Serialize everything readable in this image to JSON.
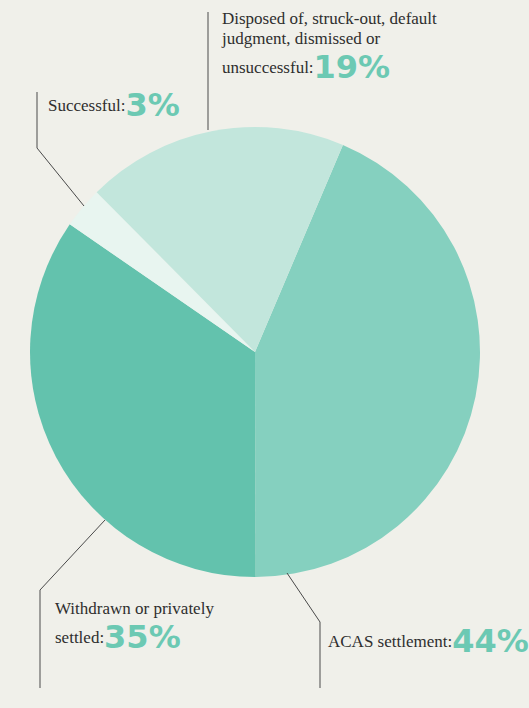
{
  "chart_data": {
    "type": "pie",
    "categories": [
      "ACAS settlement:",
      "Withdrawn or privately settled:",
      "Successful:",
      "Disposed of, struck-out, default judgment, dismissed or unsuccessful:"
    ],
    "values": [
      44,
      35,
      3,
      19
    ],
    "value_labels": [
      "44%",
      "35%",
      "3%",
      "19%"
    ],
    "colors": [
      "#85d0bf",
      "#63c2ad",
      "#e8f5f0",
      "#c2e6dc"
    ],
    "data_labels": true
  }
}
